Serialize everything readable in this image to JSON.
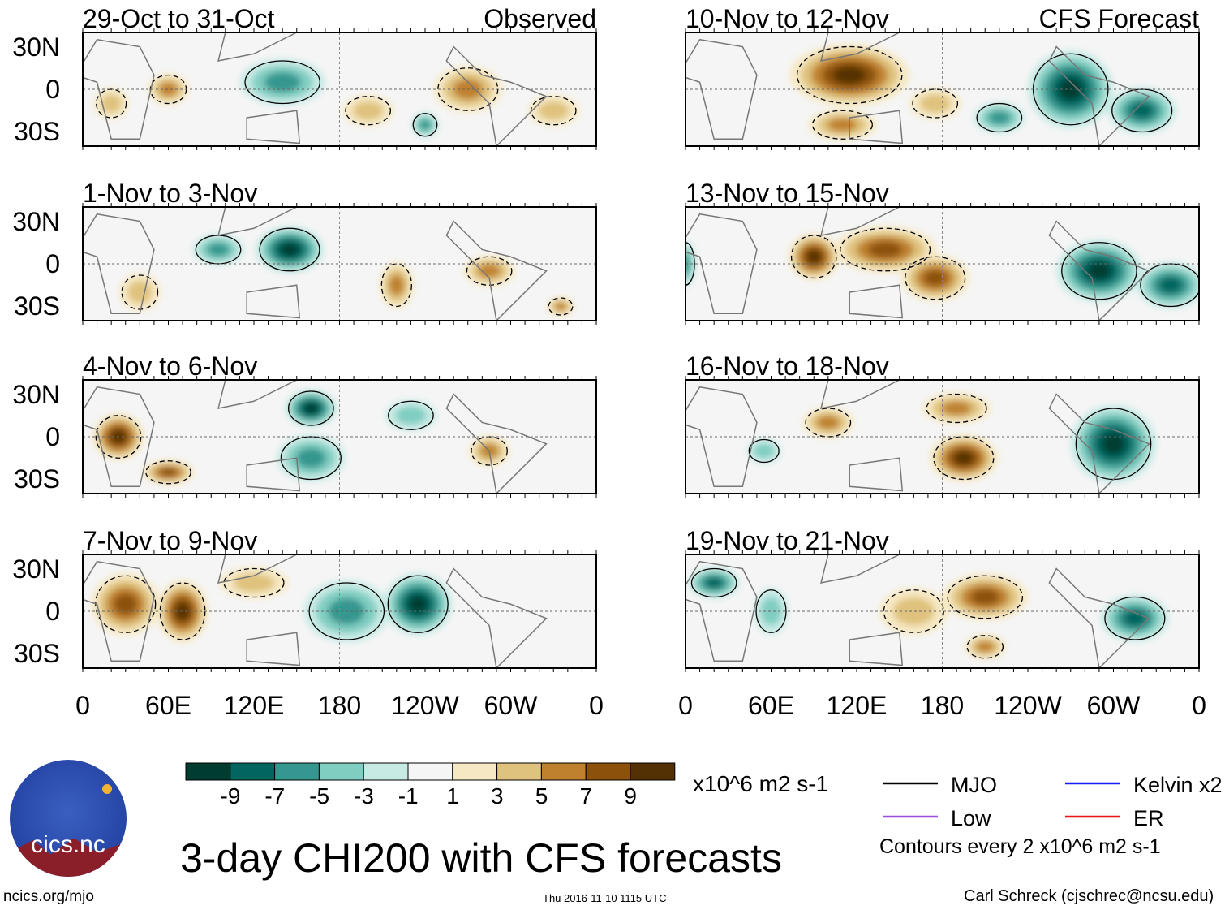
{
  "chart_data": {
    "type": "heatmap",
    "title": "3-day CHI200 with CFS forecasts",
    "units": "x10^6 m2 s-1",
    "colorbar": {
      "ticks": [
        "-9",
        "-7",
        "-5",
        "-3",
        "-1",
        "1",
        "3",
        "5",
        "7",
        "9"
      ],
      "colors": [
        "#003c30",
        "#01665e",
        "#35978f",
        "#80cdc1",
        "#c7eae5",
        "#f5f5f5",
        "#f6e8c3",
        "#dfc27d",
        "#bf812d",
        "#8c510a",
        "#543005"
      ]
    },
    "lat_ticks": [
      "30N",
      "0",
      "30S"
    ],
    "lon_ticks": [
      "0",
      "60E",
      "120E",
      "180",
      "120W",
      "60W",
      "0"
    ],
    "legend": [
      {
        "label": "MJO",
        "color": "#000000"
      },
      {
        "label": "Kelvin x2",
        "color": "#1a1aff"
      },
      {
        "label": "Low",
        "color": "#9b4fd9"
      },
      {
        "label": "ER",
        "color": "#ee1111"
      }
    ],
    "contour_note": "Contours every 2 x10^6 m2 s-1",
    "panels": [
      {
        "title": "29-Oct to 31-Oct",
        "tag": "Observed",
        "col": 0,
        "row": 0,
        "anoms": [
          [
            60,
            0,
            5,
            12,
            10
          ],
          [
            140,
            5,
            -6,
            25,
            15
          ],
          [
            270,
            0,
            6,
            20,
            15
          ],
          [
            240,
            -25,
            -5,
            8,
            8
          ],
          [
            200,
            -15,
            3,
            15,
            10
          ],
          [
            20,
            -10,
            3,
            10,
            10
          ],
          [
            330,
            -15,
            3,
            15,
            10
          ]
        ]
      },
      {
        "title": "1-Nov to 3-Nov",
        "tag": "",
        "col": 0,
        "row": 1,
        "anoms": [
          [
            145,
            10,
            -10,
            20,
            15
          ],
          [
            95,
            10,
            -5,
            15,
            10
          ],
          [
            220,
            -15,
            6,
            10,
            15
          ],
          [
            285,
            -5,
            5,
            15,
            10
          ],
          [
            335,
            -30,
            5,
            8,
            6
          ],
          [
            40,
            -20,
            3,
            12,
            12
          ]
        ]
      },
      {
        "title": "4-Nov to 6-Nov",
        "tag": "",
        "col": 0,
        "row": 2,
        "anoms": [
          [
            25,
            0,
            9,
            15,
            15
          ],
          [
            60,
            -25,
            7,
            15,
            8
          ],
          [
            160,
            20,
            -10,
            15,
            12
          ],
          [
            160,
            -15,
            -5,
            20,
            15
          ],
          [
            285,
            -10,
            5,
            12,
            10
          ],
          [
            230,
            15,
            -3,
            15,
            10
          ]
        ]
      },
      {
        "title": "7-Nov to 9-Nov",
        "tag": "",
        "col": 0,
        "row": 3,
        "anoms": [
          [
            30,
            5,
            7,
            20,
            20
          ],
          [
            70,
            0,
            9,
            15,
            20
          ],
          [
            185,
            0,
            -6,
            25,
            20
          ],
          [
            235,
            5,
            -10,
            20,
            20
          ],
          [
            120,
            20,
            4,
            20,
            10
          ]
        ]
      },
      {
        "title": "10-Nov to 12-Nov",
        "tag": "CFS Forecast",
        "col": 1,
        "row": 0,
        "anoms": [
          [
            115,
            10,
            10,
            35,
            20
          ],
          [
            110,
            -25,
            6,
            20,
            10
          ],
          [
            270,
            0,
            -10,
            25,
            25
          ],
          [
            320,
            -15,
            -7,
            20,
            15
          ],
          [
            220,
            -20,
            -5,
            15,
            10
          ],
          [
            175,
            -10,
            3,
            15,
            10
          ]
        ]
      },
      {
        "title": "13-Nov to 15-Nov",
        "tag": "",
        "col": 1,
        "row": 1,
        "anoms": [
          [
            90,
            5,
            9,
            15,
            15
          ],
          [
            140,
            10,
            8,
            30,
            15
          ],
          [
            175,
            -10,
            7,
            20,
            15
          ],
          [
            290,
            -5,
            -10,
            25,
            20
          ],
          [
            340,
            -15,
            -8,
            20,
            15
          ],
          [
            0,
            0,
            -5,
            6,
            15
          ]
        ]
      },
      {
        "title": "16-Nov to 18-Nov",
        "tag": "",
        "col": 1,
        "row": 2,
        "anoms": [
          [
            195,
            -15,
            10,
            20,
            15
          ],
          [
            100,
            10,
            6,
            15,
            10
          ],
          [
            190,
            20,
            6,
            20,
            10
          ],
          [
            300,
            -5,
            -10,
            25,
            25
          ],
          [
            55,
            -10,
            -4,
            10,
            8
          ]
        ]
      },
      {
        "title": "19-Nov to 21-Nov",
        "tag": "",
        "col": 1,
        "row": 3,
        "anoms": [
          [
            210,
            10,
            7,
            25,
            15
          ],
          [
            210,
            -25,
            6,
            12,
            8
          ],
          [
            160,
            0,
            3,
            20,
            15
          ],
          [
            315,
            -5,
            -7,
            20,
            15
          ],
          [
            20,
            20,
            -7,
            15,
            10
          ],
          [
            60,
            0,
            -4,
            10,
            15
          ]
        ]
      }
    ]
  },
  "footer": {
    "left": "ncics.org/mjo",
    "center": "Thu 2016-11-10 1115 UTC",
    "right": "Carl Schreck (cjschrec@ncsu.edu)",
    "logo": "cics.nc"
  }
}
